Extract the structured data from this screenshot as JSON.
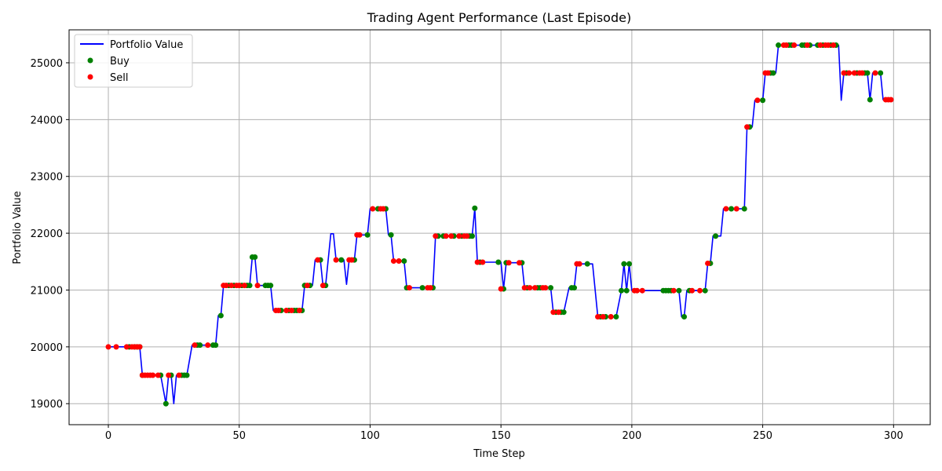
{
  "chart_data": {
    "type": "line",
    "title": "Trading Agent Performance (Last Episode)",
    "xlabel": "Time Step",
    "ylabel": "Portfolio Value",
    "xlim": [
      -15,
      314
    ],
    "ylim": [
      18630,
      25580
    ],
    "xticks": [
      0,
      50,
      100,
      150,
      200,
      250,
      300
    ],
    "yticks": [
      19000,
      20000,
      21000,
      22000,
      23000,
      24000,
      25000
    ],
    "grid": true,
    "legend_position": "top-left",
    "colors": {
      "line": "#0000ff",
      "buy": "#008000",
      "sell": "#ff0000",
      "grid": "#b0b0b0"
    },
    "series": [
      {
        "name": "Portfolio Value",
        "kind": "line",
        "points": [
          [
            0,
            20000
          ],
          [
            12,
            20000
          ],
          [
            13,
            19500
          ],
          [
            20,
            19500
          ],
          [
            22,
            19000
          ],
          [
            23,
            19500
          ],
          [
            24,
            19500
          ],
          [
            25,
            19000
          ],
          [
            26,
            19500
          ],
          [
            30,
            19500
          ],
          [
            32,
            20030
          ],
          [
            41,
            20030
          ],
          [
            42,
            20550
          ],
          [
            43,
            20550
          ],
          [
            44,
            21080
          ],
          [
            54,
            21080
          ],
          [
            55,
            21580
          ],
          [
            56,
            21580
          ],
          [
            57,
            21080
          ],
          [
            62,
            21080
          ],
          [
            63,
            20640
          ],
          [
            74,
            20640
          ],
          [
            75,
            21080
          ],
          [
            78,
            21080
          ],
          [
            79,
            21530
          ],
          [
            81,
            21530
          ],
          [
            82,
            21080
          ],
          [
            83,
            21080
          ],
          [
            85,
            21990
          ],
          [
            86,
            21990
          ],
          [
            87,
            21530
          ],
          [
            90,
            21530
          ],
          [
            91,
            21100
          ],
          [
            92,
            21530
          ],
          [
            94,
            21530
          ],
          [
            95,
            21970
          ],
          [
            99,
            21970
          ],
          [
            100,
            22430
          ],
          [
            106,
            22430
          ],
          [
            107,
            21970
          ],
          [
            108,
            21970
          ],
          [
            109,
            21510
          ],
          [
            113,
            21510
          ],
          [
            114,
            21040
          ],
          [
            124,
            21040
          ],
          [
            125,
            21950
          ],
          [
            139,
            21950
          ],
          [
            140,
            22440
          ],
          [
            141,
            21490
          ],
          [
            150,
            21490
          ],
          [
            151,
            21020
          ],
          [
            152,
            21480
          ],
          [
            158,
            21480
          ],
          [
            159,
            21040
          ],
          [
            169,
            21040
          ],
          [
            170,
            20610
          ],
          [
            174,
            20610
          ],
          [
            176,
            21040
          ],
          [
            178,
            21040
          ],
          [
            179,
            21460
          ],
          [
            185,
            21460
          ],
          [
            187,
            20530
          ],
          [
            194,
            20530
          ],
          [
            196,
            20990
          ],
          [
            197,
            21460
          ],
          [
            198,
            20990
          ],
          [
            199,
            21460
          ],
          [
            200,
            20990
          ],
          [
            218,
            20990
          ],
          [
            219,
            20530
          ],
          [
            220,
            20530
          ],
          [
            221,
            20990
          ],
          [
            228,
            20990
          ],
          [
            229,
            21470
          ],
          [
            230,
            21470
          ],
          [
            231,
            21950
          ],
          [
            234,
            21950
          ],
          [
            235,
            22430
          ],
          [
            243,
            22430
          ],
          [
            244,
            23870
          ],
          [
            246,
            23870
          ],
          [
            247,
            24340
          ],
          [
            250,
            24340
          ],
          [
            251,
            24820
          ],
          [
            255,
            24820
          ],
          [
            256,
            25310
          ],
          [
            279,
            25310
          ],
          [
            280,
            24340
          ],
          [
            281,
            24820
          ],
          [
            290,
            24820
          ],
          [
            291,
            24340
          ],
          [
            292,
            24820
          ],
          [
            295,
            24820
          ],
          [
            296,
            24350
          ],
          [
            299,
            24350
          ]
        ]
      },
      {
        "name": "Buy",
        "kind": "scatter",
        "points": [
          [
            8,
            20000
          ],
          [
            10,
            20000
          ],
          [
            11,
            20000
          ],
          [
            12,
            20000
          ],
          [
            13,
            19500
          ],
          [
            20,
            19500
          ],
          [
            22,
            19000
          ],
          [
            24,
            19500
          ],
          [
            28,
            19500
          ],
          [
            29,
            19500
          ],
          [
            30,
            19500
          ],
          [
            34,
            20030
          ],
          [
            35,
            20030
          ],
          [
            40,
            20030
          ],
          [
            41,
            20030
          ],
          [
            43,
            20550
          ],
          [
            46,
            21080
          ],
          [
            48,
            21080
          ],
          [
            51,
            21080
          ],
          [
            53,
            21080
          ],
          [
            54,
            21080
          ],
          [
            55,
            21580
          ],
          [
            56,
            21580
          ],
          [
            60,
            21080
          ],
          [
            61,
            21080
          ],
          [
            62,
            21080
          ],
          [
            66,
            20640
          ],
          [
            69,
            20640
          ],
          [
            71,
            20640
          ],
          [
            72,
            20640
          ],
          [
            74,
            20640
          ],
          [
            75,
            21080
          ],
          [
            77,
            21080
          ],
          [
            81,
            21530
          ],
          [
            83,
            21080
          ],
          [
            89,
            21530
          ],
          [
            94,
            21530
          ],
          [
            99,
            21970
          ],
          [
            103,
            22430
          ],
          [
            106,
            22430
          ],
          [
            108,
            21970
          ],
          [
            113,
            21510
          ],
          [
            114,
            21040
          ],
          [
            120,
            21040
          ],
          [
            124,
            21040
          ],
          [
            126,
            21950
          ],
          [
            128,
            21950
          ],
          [
            132,
            21950
          ],
          [
            135,
            21950
          ],
          [
            138,
            21950
          ],
          [
            139,
            21950
          ],
          [
            140,
            22440
          ],
          [
            142,
            21490
          ],
          [
            149,
            21490
          ],
          [
            151,
            21020
          ],
          [
            152,
            21480
          ],
          [
            158,
            21480
          ],
          [
            160,
            21040
          ],
          [
            164,
            21040
          ],
          [
            165,
            21040
          ],
          [
            169,
            21040
          ],
          [
            171,
            20610
          ],
          [
            173,
            20610
          ],
          [
            174,
            20610
          ],
          [
            177,
            21040
          ],
          [
            178,
            21040
          ],
          [
            183,
            21460
          ],
          [
            188,
            20530
          ],
          [
            190,
            20530
          ],
          [
            194,
            20530
          ],
          [
            196,
            20990
          ],
          [
            197,
            21460
          ],
          [
            198,
            20990
          ],
          [
            199,
            21460
          ],
          [
            212,
            20990
          ],
          [
            213,
            20990
          ],
          [
            214,
            20990
          ],
          [
            215,
            20990
          ],
          [
            218,
            20990
          ],
          [
            220,
            20530
          ],
          [
            222,
            20990
          ],
          [
            228,
            20990
          ],
          [
            230,
            21470
          ],
          [
            232,
            21950
          ],
          [
            238,
            22430
          ],
          [
            243,
            22430
          ],
          [
            245,
            23870
          ],
          [
            250,
            24340
          ],
          [
            253,
            24820
          ],
          [
            254,
            24820
          ],
          [
            256,
            25310
          ],
          [
            260,
            25310
          ],
          [
            261,
            25310
          ],
          [
            265,
            25310
          ],
          [
            266,
            25310
          ],
          [
            268,
            25310
          ],
          [
            271,
            25310
          ],
          [
            273,
            25310
          ],
          [
            276,
            25310
          ],
          [
            278,
            25310
          ],
          [
            282,
            24820
          ],
          [
            286,
            24820
          ],
          [
            289,
            24820
          ],
          [
            290,
            24820
          ],
          [
            291,
            24350
          ],
          [
            295,
            24820
          ]
        ]
      },
      {
        "name": "Sell",
        "kind": "scatter",
        "points": [
          [
            0,
            20000
          ],
          [
            3,
            20000
          ],
          [
            7,
            20000
          ],
          [
            9,
            20000
          ],
          [
            10,
            20000
          ],
          [
            11,
            20000
          ],
          [
            12,
            20000
          ],
          [
            13,
            19500
          ],
          [
            14,
            19500
          ],
          [
            15,
            19500
          ],
          [
            16,
            19500
          ],
          [
            17,
            19500
          ],
          [
            19,
            19500
          ],
          [
            23,
            19500
          ],
          [
            27,
            19500
          ],
          [
            33,
            20030
          ],
          [
            38,
            20030
          ],
          [
            44,
            21080
          ],
          [
            45,
            21080
          ],
          [
            47,
            21080
          ],
          [
            49,
            21080
          ],
          [
            50,
            21080
          ],
          [
            52,
            21080
          ],
          [
            57,
            21080
          ],
          [
            64,
            20640
          ],
          [
            65,
            20640
          ],
          [
            68,
            20640
          ],
          [
            70,
            20640
          ],
          [
            73,
            20640
          ],
          [
            76,
            21080
          ],
          [
            80,
            21530
          ],
          [
            82,
            21080
          ],
          [
            87,
            21530
          ],
          [
            92,
            21530
          ],
          [
            93,
            21530
          ],
          [
            95,
            21970
          ],
          [
            96,
            21970
          ],
          [
            101,
            22430
          ],
          [
            104,
            22430
          ],
          [
            105,
            22430
          ],
          [
            109,
            21510
          ],
          [
            111,
            21510
          ],
          [
            115,
            21040
          ],
          [
            122,
            21040
          ],
          [
            123,
            21040
          ],
          [
            125,
            21950
          ],
          [
            129,
            21950
          ],
          [
            131,
            21950
          ],
          [
            134,
            21950
          ],
          [
            136,
            21950
          ],
          [
            137,
            21950
          ],
          [
            141,
            21490
          ],
          [
            143,
            21490
          ],
          [
            150,
            21020
          ],
          [
            153,
            21480
          ],
          [
            157,
            21480
          ],
          [
            159,
            21040
          ],
          [
            161,
            21040
          ],
          [
            163,
            21040
          ],
          [
            166,
            21040
          ],
          [
            167,
            21040
          ],
          [
            170,
            20610
          ],
          [
            172,
            20610
          ],
          [
            179,
            21460
          ],
          [
            180,
            21460
          ],
          [
            187,
            20530
          ],
          [
            189,
            20530
          ],
          [
            192,
            20530
          ],
          [
            201,
            20990
          ],
          [
            202,
            20990
          ],
          [
            204,
            20990
          ],
          [
            216,
            20990
          ],
          [
            223,
            20990
          ],
          [
            226,
            20990
          ],
          [
            229,
            21470
          ],
          [
            236,
            22430
          ],
          [
            240,
            22430
          ],
          [
            244,
            23870
          ],
          [
            248,
            24340
          ],
          [
            251,
            24820
          ],
          [
            252,
            24820
          ],
          [
            258,
            25310
          ],
          [
            259,
            25310
          ],
          [
            262,
            25310
          ],
          [
            267,
            25310
          ],
          [
            272,
            25310
          ],
          [
            274,
            25310
          ],
          [
            275,
            25310
          ],
          [
            277,
            25310
          ],
          [
            281,
            24820
          ],
          [
            283,
            24820
          ],
          [
            285,
            24820
          ],
          [
            287,
            24820
          ],
          [
            288,
            24820
          ],
          [
            293,
            24820
          ],
          [
            297,
            24350
          ],
          [
            298,
            24350
          ],
          [
            299,
            24350
          ]
        ]
      }
    ]
  }
}
